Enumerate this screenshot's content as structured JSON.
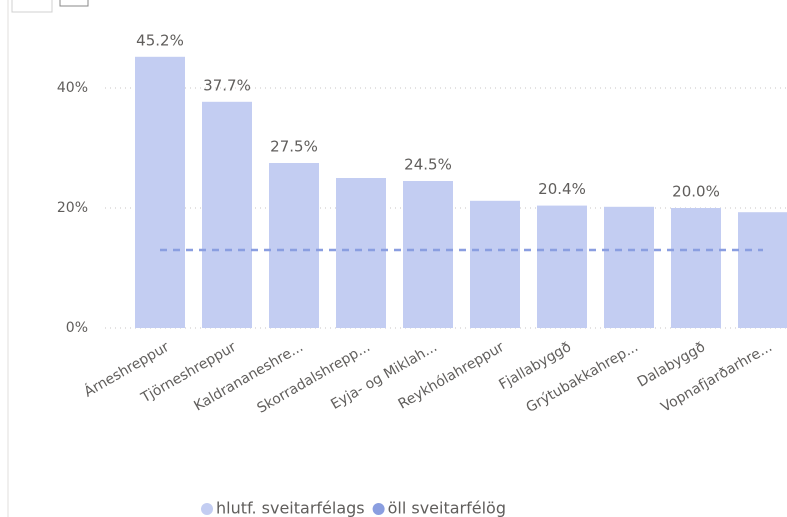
{
  "chart_data": {
    "type": "bar",
    "categories": [
      "Árneshreppur",
      "Tjörneshreppur",
      "Kaldrananeshre...",
      "Skorradalshrepp...",
      "Eyja- og Miklah...",
      "Reykhólahreppur",
      "Fjallabyggð",
      "Grýtubakkahrep...",
      "Dalabyggð",
      "Vopnafjarðarhre..."
    ],
    "series": [
      {
        "name": "hlutf. sveitarfélags",
        "color": "#c3cdf2",
        "type": "bar",
        "values": [
          45.2,
          37.7,
          27.5,
          25.0,
          24.5,
          21.2,
          20.4,
          20.2,
          20.0,
          19.3
        ],
        "value_labels": [
          "45.2%",
          "37.7%",
          "27.5%",
          null,
          "24.5%",
          null,
          "20.4%",
          null,
          "20.0%",
          null
        ]
      },
      {
        "name": "öll sveitarfélög",
        "color": "#8a9ee0",
        "type": "line",
        "dashed": true,
        "values": [
          13,
          13,
          13,
          13,
          13,
          13,
          13,
          13,
          13,
          13
        ]
      }
    ],
    "ylim": [
      0,
      48
    ],
    "yticks": [
      {
        "value": 0,
        "label": "0%"
      },
      {
        "value": 20,
        "label": "20%"
      },
      {
        "value": 40,
        "label": "40%"
      }
    ],
    "grid": true,
    "legend": "bottom"
  }
}
